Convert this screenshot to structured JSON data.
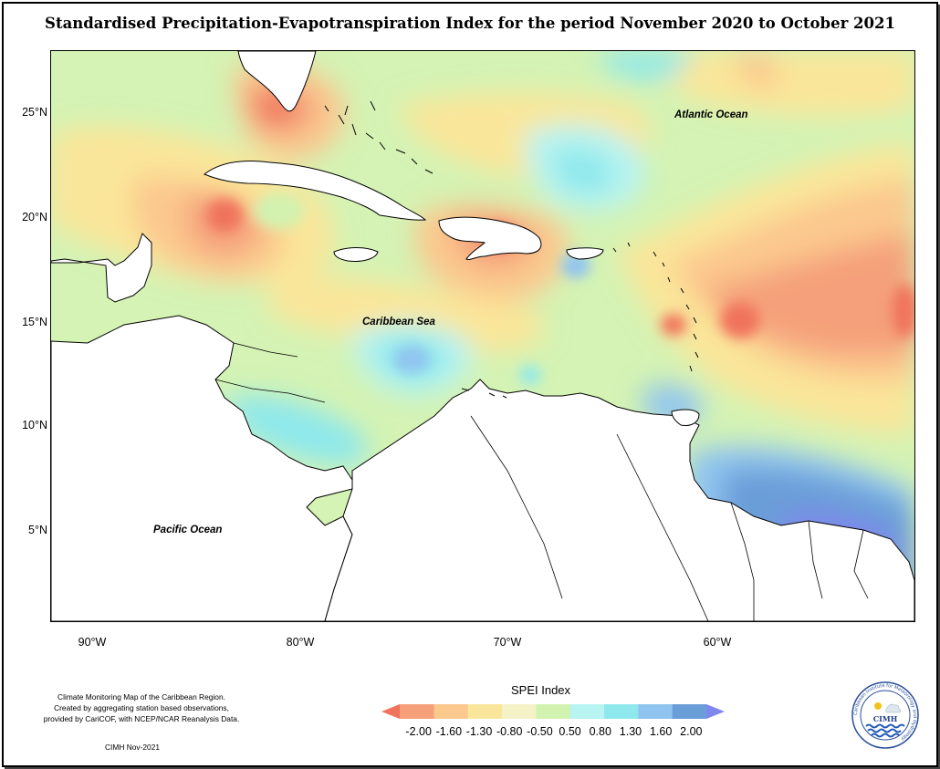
{
  "title": "Standardised Precipitation-Evapotranspiration Index for the period November 2020 to October 2021",
  "lat_labels": [
    "25°N",
    "20°N",
    "15°N",
    "10°N",
    "5°N"
  ],
  "lon_labels": [
    "90°W",
    "80°W",
    "70°W",
    "60°W"
  ],
  "ocean_labels": {
    "atlantic": "Atlantic Ocean",
    "caribbean": "Caribbean Sea",
    "pacific": "Pacific Ocean"
  },
  "legend": {
    "title": "SPEI Index",
    "ticks": [
      "-2.00",
      "-1.60",
      "-1.30",
      "-0.80",
      "-0.50",
      "0.50",
      "0.80",
      "1.30",
      "1.60",
      "2.00"
    ],
    "colors": [
      "#f0735c",
      "#f5a07a",
      "#fbc88e",
      "#fae69a",
      "#f5f2c8",
      "#d2f2b0",
      "#b8f4f2",
      "#8ee8ec",
      "#90c4f0",
      "#6a9ed8",
      "#7f86ec"
    ]
  },
  "credits": {
    "line1": "Climate Monitoring Map of the Caribbean Region.",
    "line2": "Created by aggregating station based observations,",
    "line3": "provided by CariCOF, with NCEP/NCAR Reanalysis Data.",
    "date": "CIMH Nov-2021"
  },
  "logo": {
    "text": "CIMH",
    "ring_text": "Caribbean Institute for Meteorology and Hydrology",
    "icon": "cimh-logo-icon"
  },
  "colors": {
    "land": "#ffffff",
    "neutral": "#d2f2b0",
    "dry_moderate": "#fbc88e",
    "dry_severe": "#f0735c",
    "wet_moderate": "#8ee8ec",
    "wet_severe": "#7f86ec"
  }
}
